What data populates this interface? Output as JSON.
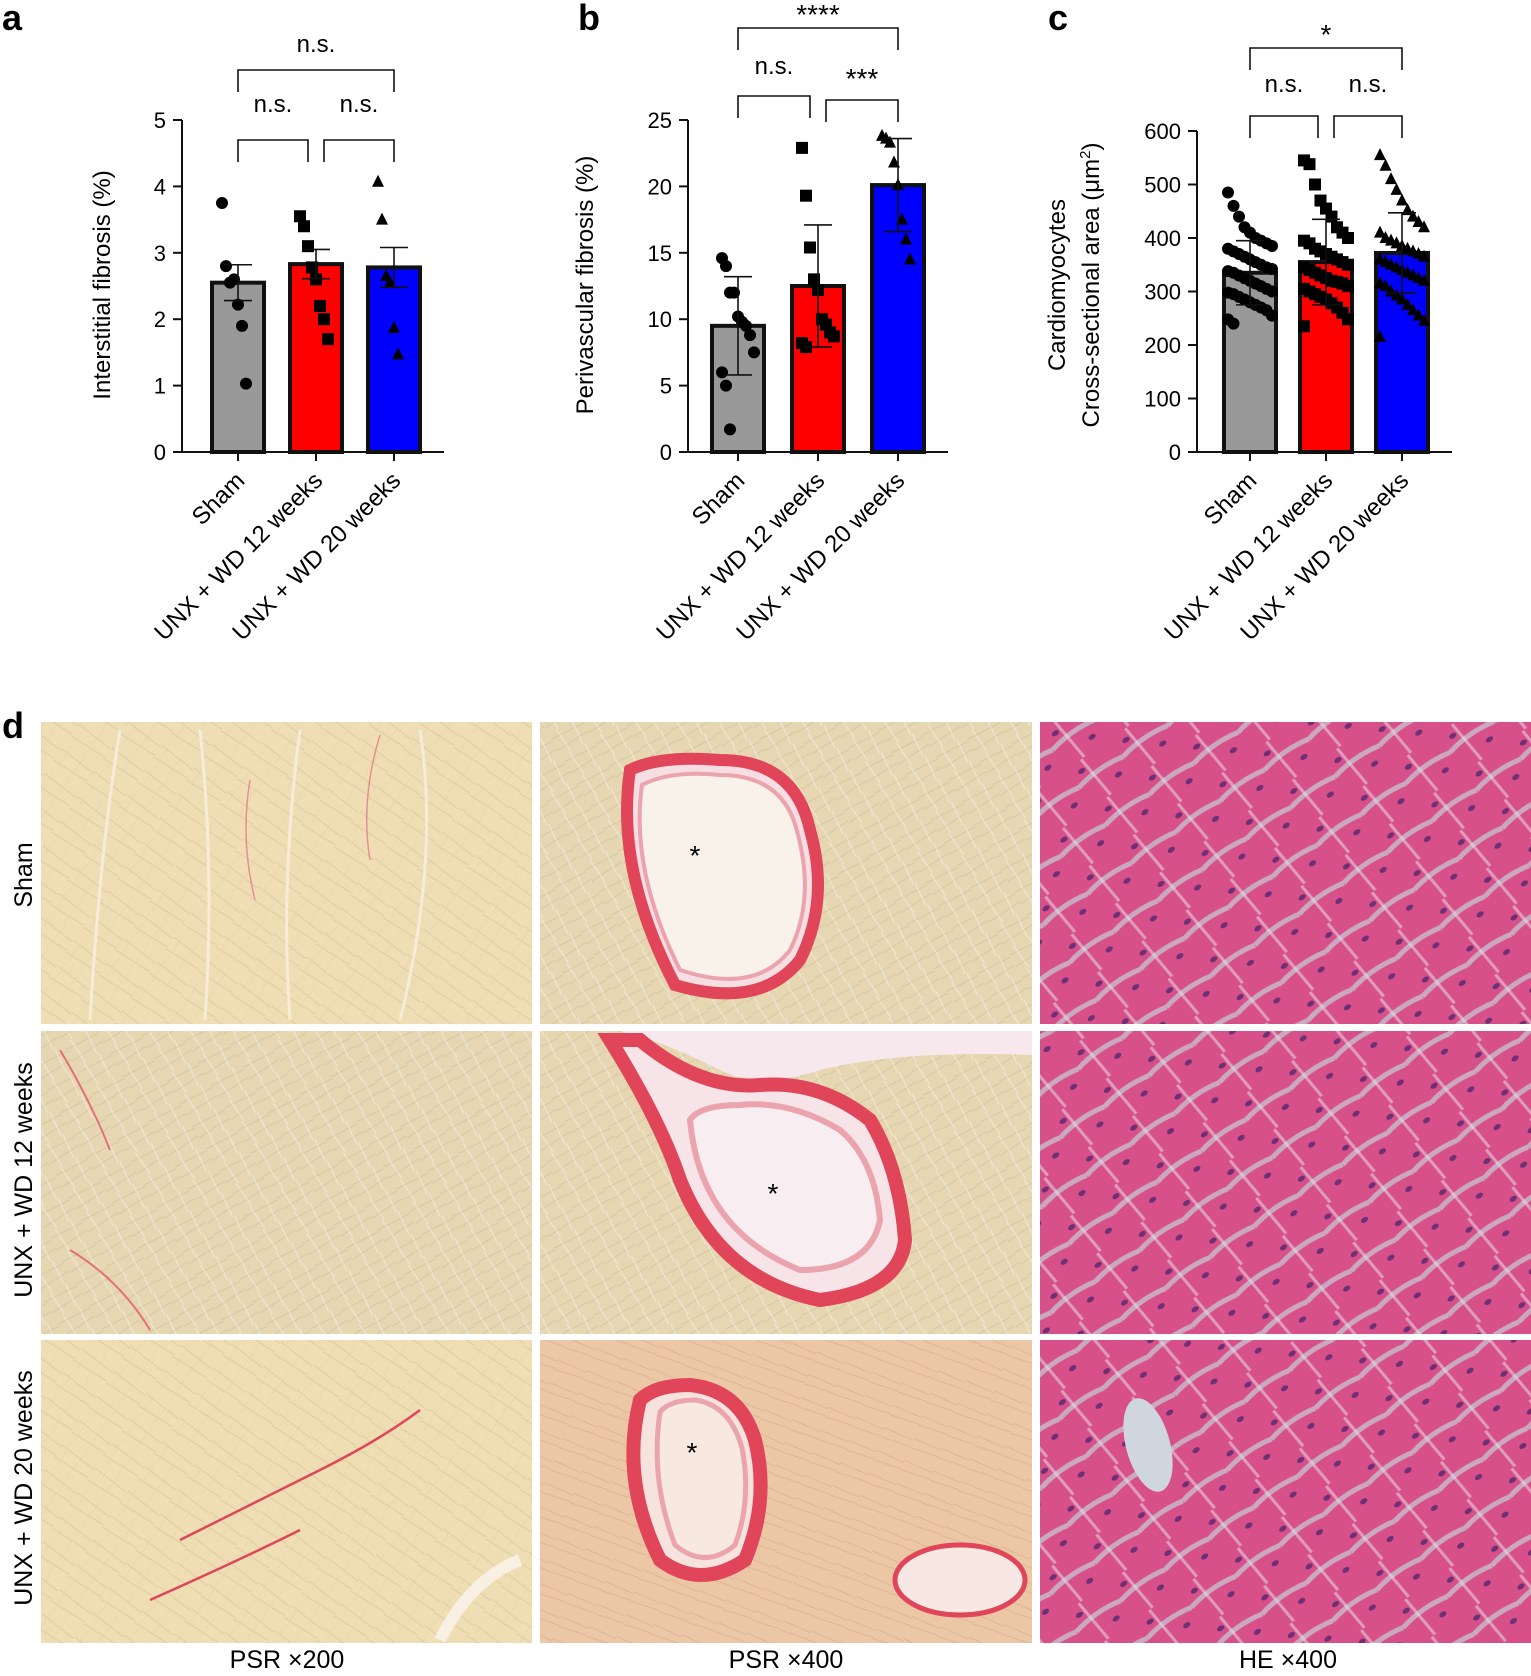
{
  "colors": {
    "sham": "#999999",
    "unx_wd_12": "#ff0000",
    "unx_wd_20": "#0000ff",
    "axis": "#111111",
    "psr_background": "#eedcb0",
    "psr_collagen": "#e0455a",
    "he_background": "#d84e84",
    "he_nuclei": "#5a2a6e"
  },
  "groups": [
    "Sham",
    "UNX + WD 12 weeks",
    "UNX + WD 20 weeks"
  ],
  "panels": {
    "a": {
      "letter": "a"
    },
    "b": {
      "letter": "b"
    },
    "c": {
      "letter": "c"
    },
    "d": {
      "letter": "d",
      "row_labels": [
        "Sham",
        "UNX + WD 12 weeks",
        "UNX + WD 20 weeks"
      ],
      "column_labels": [
        "PSR ×200",
        "PSR ×400",
        "HE ×400"
      ],
      "lumen_marker": "*",
      "image_types": [
        "PSR ×200 micrograph",
        "PSR ×400 micrograph with vessel",
        "HE ×400 micrograph"
      ]
    }
  },
  "chart_data": [
    {
      "type": "bar",
      "panel": "a",
      "ylabel": "Interstitial fibrosis (%)",
      "ylim": [
        0,
        5
      ],
      "yticks": [
        0,
        1,
        2,
        3,
        4,
        5
      ],
      "categories": [
        "Sham",
        "UNX + WD 12 weeks",
        "UNX + WD 20 weeks"
      ],
      "values": [
        2.55,
        2.83,
        2.78
      ],
      "errors": [
        0.27,
        0.22,
        0.3
      ],
      "markers": [
        "circle",
        "square",
        "triangle"
      ],
      "points": [
        [
          3.75,
          2.8,
          2.55,
          2.6,
          2.22,
          1.9,
          1.03
        ],
        [
          3.55,
          3.4,
          3.1,
          2.78,
          2.6,
          2.2,
          2.0,
          1.7
        ],
        [
          4.07,
          3.5,
          2.65,
          2.55,
          1.87,
          1.47
        ]
      ],
      "comparisons": [
        {
          "from": 0,
          "to": 1,
          "label": "n.s."
        },
        {
          "from": 1,
          "to": 2,
          "label": "n.s."
        },
        {
          "from": 0,
          "to": 2,
          "label": "n.s."
        }
      ]
    },
    {
      "type": "bar",
      "panel": "b",
      "ylabel": "Perivascular fibrosis (%)",
      "ylim": [
        0,
        25
      ],
      "yticks": [
        0,
        5,
        10,
        15,
        20,
        25
      ],
      "categories": [
        "Sham",
        "UNX + WD 12 weeks",
        "UNX + WD 20 weeks"
      ],
      "values": [
        9.5,
        12.5,
        20.1
      ],
      "errors": [
        3.7,
        4.6,
        3.5
      ],
      "markers": [
        "circle",
        "square",
        "triangle"
      ],
      "points": [
        [
          14.6,
          14.0,
          12.0,
          12.0,
          10.2,
          9.8,
          9.5,
          8.8,
          7.5,
          6.0,
          5.0,
          1.7
        ],
        [
          22.9,
          19.3,
          15.4,
          13.0,
          12.2,
          10.0,
          9.6,
          9.0,
          8.7,
          8.2,
          7.9
        ],
        [
          23.8,
          23.6,
          23.3,
          21.8,
          20.1,
          17.5,
          16.0,
          14.5
        ]
      ],
      "comparisons": [
        {
          "from": 0,
          "to": 1,
          "label": "n.s."
        },
        {
          "from": 1,
          "to": 2,
          "label": "***"
        },
        {
          "from": 0,
          "to": 2,
          "label": "****"
        }
      ]
    },
    {
      "type": "bar",
      "panel": "c",
      "ylabel_line1": "Cardiomyocytes",
      "ylabel_line2": "Cross-sectional area (μm",
      "ylabel_sup": "2",
      "ylabel_close": ")",
      "ylim": [
        0,
        600
      ],
      "yticks": [
        0,
        100,
        200,
        300,
        400,
        500,
        600
      ],
      "categories": [
        "Sham",
        "UNX + WD 12 weeks",
        "UNX + WD 20 weeks"
      ],
      "values": [
        335,
        355,
        372
      ],
      "errors": [
        60,
        80,
        75
      ],
      "markers": [
        "circle",
        "square",
        "triangle"
      ],
      "points": [
        [
          485,
          460,
          440,
          420,
          410,
          400,
          395,
          390,
          385,
          380,
          375,
          370,
          365,
          360,
          355,
          350,
          345,
          342,
          338,
          335,
          330,
          325,
          320,
          315,
          310,
          305,
          300,
          298,
          295,
          290,
          285,
          280,
          275,
          270,
          265,
          255,
          248,
          240
        ],
        [
          545,
          538,
          500,
          470,
          455,
          440,
          420,
          410,
          400,
          395,
          390,
          380,
          375,
          370,
          365,
          360,
          355,
          350,
          345,
          340,
          335,
          330,
          325,
          320,
          318,
          315,
          310,
          305,
          300,
          295,
          290,
          285,
          278,
          270,
          260,
          248,
          235
        ],
        [
          555,
          535,
          510,
          490,
          470,
          452,
          440,
          430,
          420,
          410,
          400,
          395,
          390,
          385,
          380,
          375,
          370,
          365,
          360,
          355,
          350,
          345,
          340,
          335,
          330,
          325,
          320,
          315,
          310,
          300,
          292,
          285,
          275,
          265,
          255,
          245,
          215
        ]
      ],
      "comparisons": [
        {
          "from": 0,
          "to": 1,
          "label": "n.s."
        },
        {
          "from": 1,
          "to": 2,
          "label": "n.s."
        },
        {
          "from": 0,
          "to": 2,
          "label": "*"
        }
      ]
    }
  ]
}
